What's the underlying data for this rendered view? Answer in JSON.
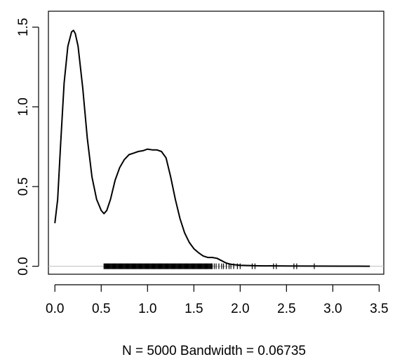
{
  "chart_data": {
    "type": "line",
    "title": "",
    "xlabel": "N = 5000   Bandwidth = 0.06735",
    "ylabel": "",
    "xlim": [
      -0.07,
      3.55
    ],
    "ylim": [
      -0.05,
      1.6
    ],
    "x_ticks": [
      0.0,
      0.5,
      1.0,
      1.5,
      2.0,
      2.5,
      3.0,
      3.5
    ],
    "x_tick_labels": [
      "0.0",
      "0.5",
      "1.0",
      "1.5",
      "2.0",
      "2.5",
      "3.0",
      "3.5"
    ],
    "y_ticks": [
      0.0,
      0.5,
      1.0,
      1.5
    ],
    "y_tick_labels": [
      "0.0",
      "0.5",
      "1.0",
      "1.5"
    ],
    "grid": false,
    "baseline": 0,
    "series": [
      {
        "x": [
          0.0,
          0.03,
          0.06,
          0.1,
          0.14,
          0.18,
          0.2,
          0.22,
          0.25,
          0.3,
          0.35,
          0.4,
          0.45,
          0.5,
          0.53,
          0.56,
          0.6,
          0.65,
          0.7,
          0.75,
          0.8,
          0.85,
          0.9,
          0.95,
          1.0,
          1.05,
          1.1,
          1.15,
          1.2,
          1.25,
          1.3,
          1.35,
          1.4,
          1.45,
          1.5,
          1.55,
          1.6,
          1.65,
          1.7,
          1.75,
          1.8,
          1.85,
          1.9,
          2.0,
          2.2,
          2.5,
          2.8,
          3.1,
          3.4
        ],
        "y": [
          0.27,
          0.42,
          0.75,
          1.15,
          1.38,
          1.47,
          1.48,
          1.46,
          1.38,
          1.12,
          0.8,
          0.56,
          0.42,
          0.35,
          0.33,
          0.35,
          0.42,
          0.54,
          0.62,
          0.67,
          0.7,
          0.71,
          0.72,
          0.725,
          0.735,
          0.73,
          0.73,
          0.72,
          0.68,
          0.56,
          0.42,
          0.3,
          0.21,
          0.15,
          0.11,
          0.085,
          0.065,
          0.055,
          0.055,
          0.05,
          0.035,
          0.02,
          0.012,
          0.006,
          0.003,
          0.002,
          0.001,
          0.0005,
          0.0
        ]
      }
    ],
    "rug": {
      "dense_range": [
        0.53,
        1.7
      ],
      "dense_step": 0.008,
      "sparse": [
        1.72,
        1.74,
        1.77,
        1.8,
        1.82,
        1.85,
        1.88,
        1.9,
        1.93,
        1.97,
        2.0,
        2.13,
        2.16,
        2.36,
        2.39,
        2.58,
        2.61,
        2.8
      ]
    }
  }
}
